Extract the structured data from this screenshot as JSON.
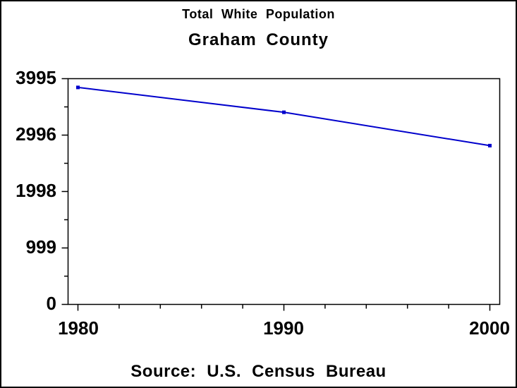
{
  "chart_data": {
    "type": "line",
    "title": "Total White Population",
    "subtitle": "Graham County",
    "annotation": "Source: U.S. Census Bureau",
    "x": [
      1980,
      1990,
      2000
    ],
    "series": [
      {
        "name": "Total White Population",
        "values": [
          3840,
          3400,
          2810
        ]
      }
    ],
    "xticks": [
      1980,
      1990,
      2000
    ],
    "x_minor_interval": 2,
    "yticks": [
      0,
      999,
      1998,
      2996,
      3995
    ],
    "xlim": [
      1980,
      2000
    ],
    "ylim": [
      0,
      3995
    ],
    "grid": false,
    "legend": "none",
    "marker": "square",
    "line_color": "#0000CC",
    "axis_color": "#000000",
    "background_color": "#FFFFFF"
  }
}
